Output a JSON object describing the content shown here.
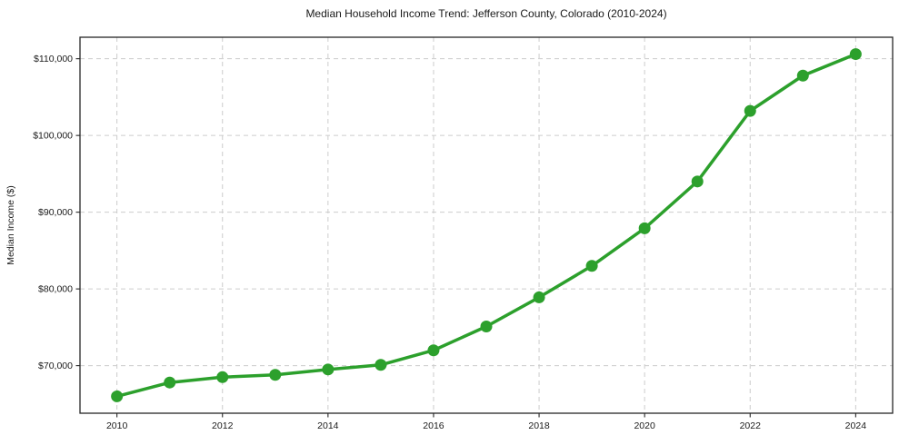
{
  "chart_data": {
    "type": "line",
    "title": "Median Household Income Trend: Jefferson County, Colorado (2010-2024)",
    "xlabel": "",
    "ylabel": "Median Income ($)",
    "x": [
      2010,
      2011,
      2012,
      2013,
      2014,
      2015,
      2016,
      2017,
      2018,
      2019,
      2020,
      2021,
      2022,
      2023,
      2024
    ],
    "values": [
      66000,
      67800,
      68500,
      68800,
      69500,
      70100,
      72000,
      75100,
      78900,
      83000,
      87900,
      94000,
      103200,
      107800,
      110600
    ],
    "series_name": "Median Household Income",
    "xlim": [
      2009.3,
      2024.7
    ],
    "ylim": [
      63800,
      112800
    ],
    "x_ticks": [
      2010,
      2012,
      2014,
      2016,
      2018,
      2020,
      2022,
      2024
    ],
    "x_tick_labels": [
      "2010",
      "2012",
      "2014",
      "2016",
      "2018",
      "2020",
      "2022",
      "2024"
    ],
    "y_ticks": [
      70000,
      80000,
      90000,
      100000,
      110000
    ],
    "y_tick_labels": [
      "$70,000",
      "$80,000",
      "$90,000",
      "$100,000",
      "$110,000"
    ],
    "grid": true,
    "grid_style": "dashed",
    "legend": "none",
    "colors": {
      "line": "#2ca02c",
      "marker": "#2ca02c",
      "grid": "#cccccc",
      "spine": "#262626",
      "text": "#1a1a1a",
      "background": "#ffffff"
    },
    "marker": "circle",
    "marker_radius": 6.5,
    "line_width": 3.5
  }
}
